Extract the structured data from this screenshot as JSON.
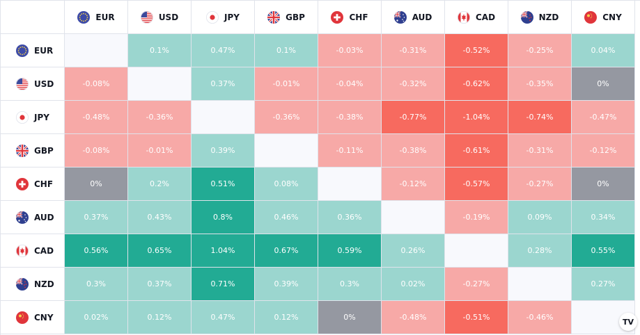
{
  "chart_data": {
    "type": "heatmap",
    "currencies": [
      "EUR",
      "USD",
      "JPY",
      "GBP",
      "CHF",
      "AUD",
      "CAD",
      "NZD",
      "CNY"
    ],
    "flag_icons": [
      "eu-flag-icon",
      "us-flag-icon",
      "jp-flag-icon",
      "gb-flag-icon",
      "ch-flag-icon",
      "au-flag-icon",
      "ca-flag-icon",
      "nz-flag-icon",
      "cn-flag-icon"
    ],
    "rows": [
      [
        "",
        "0.1%",
        "0.47%",
        "0.1%",
        "-0.03%",
        "-0.31%",
        "-0.52%",
        "-0.25%",
        "0.04%"
      ],
      [
        "-0.08%",
        "",
        "0.37%",
        "-0.01%",
        "-0.04%",
        "-0.32%",
        "-0.62%",
        "-0.35%",
        "0%"
      ],
      [
        "-0.48%",
        "-0.36%",
        "",
        "-0.36%",
        "-0.38%",
        "-0.77%",
        "-1.04%",
        "-0.74%",
        "-0.47%"
      ],
      [
        "-0.08%",
        "-0.01%",
        "0.39%",
        "",
        "-0.11%",
        "-0.38%",
        "-0.61%",
        "-0.31%",
        "-0.12%"
      ],
      [
        "0%",
        "0.2%",
        "0.51%",
        "0.08%",
        "",
        "-0.12%",
        "-0.57%",
        "-0.27%",
        "0%"
      ],
      [
        "0.37%",
        "0.43%",
        "0.8%",
        "0.46%",
        "0.36%",
        "",
        "-0.19%",
        "0.09%",
        "0.34%"
      ],
      [
        "0.56%",
        "0.65%",
        "1.04%",
        "0.67%",
        "0.59%",
        "0.26%",
        "",
        "0.28%",
        "0.55%"
      ],
      [
        "0.3%",
        "0.37%",
        "0.71%",
        "0.39%",
        "0.3%",
        "0.02%",
        "-0.27%",
        "",
        "0.27%"
      ],
      [
        "0.02%",
        "0.12%",
        "0.47%",
        "0.12%",
        "0%",
        "-0.48%",
        "-0.51%",
        "-0.46%",
        ""
      ]
    ],
    "colors": {
      "strong_positive": "#22ab94",
      "positive": "#9bd6cf",
      "neutral": "#9598a1",
      "negative": "#f7a9a7",
      "strong_negative": "#f76a5f",
      "diagonal": "#f8f9fd"
    },
    "thresholds": {
      "strong": 0.5
    }
  },
  "branding": {
    "logo_text": "TV"
  }
}
